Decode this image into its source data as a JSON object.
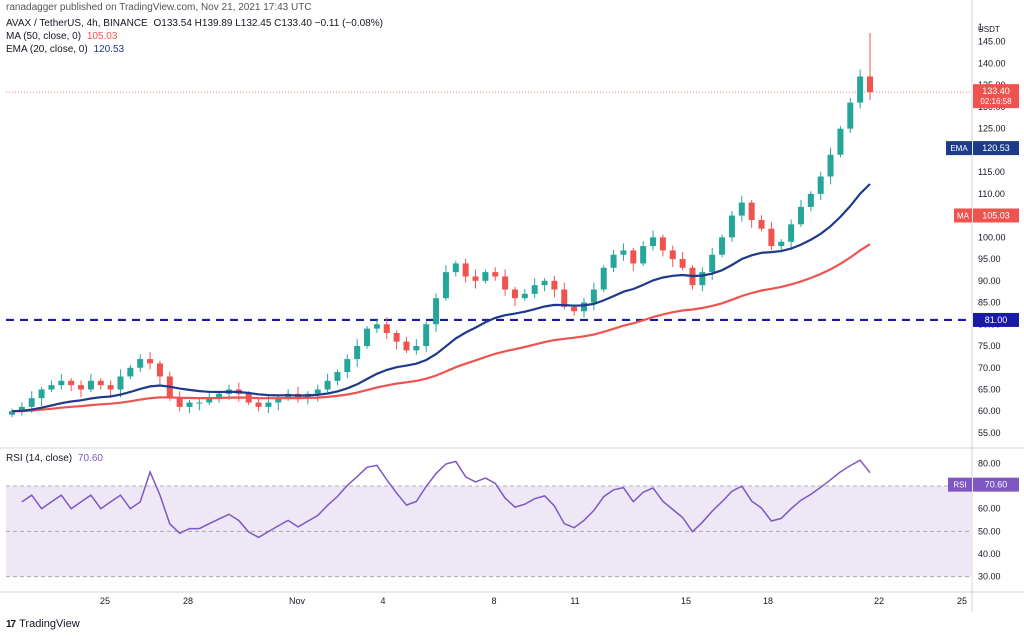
{
  "header": {
    "publisher": "ranadagger published on TradingView.com, Nov 21, 2021 17:43 UTC"
  },
  "legend": {
    "symbol": "AVAX / TetherUS, 4h, BINANCE",
    "ohlc": "O133.54 H139.89 L132.45 C133.40 −0.11 (−0.08%)",
    "ma_label": "MA (50, close, 0)",
    "ma_value": "105.03",
    "ema_label": "EMA (20, close, 0)",
    "ema_value": "120.53"
  },
  "rsi_legend": {
    "label": "RSI (14, close)",
    "value": "70.60"
  },
  "footer": {
    "logo": "17",
    "brand": "TradingView"
  },
  "colors": {
    "up": "#26a69a",
    "down": "#ef5350",
    "ma": "#ef5350",
    "ema": "#1e3a8a",
    "support": "#1a1aa6",
    "rsi": "#7e57c2",
    "rsi_band": "#ede7f6"
  },
  "chart_data": {
    "type": "candlestick",
    "currency": "USDT",
    "price_axis": {
      "ticks": [
        55,
        60,
        65,
        70,
        75,
        80,
        85,
        90,
        95,
        100,
        105,
        110,
        115,
        120,
        125,
        130,
        135,
        140,
        145
      ],
      "top_tick": "1"
    },
    "rsi_axis": {
      "ticks": [
        30,
        40,
        50,
        60,
        70,
        80
      ]
    },
    "x_axis": {
      "ticks": [
        "25",
        "28",
        "Nov",
        "4",
        "8",
        "11",
        "15",
        "18",
        "22",
        "25"
      ]
    },
    "price_tags": {
      "last": "133.40",
      "countdown": "02:16:58",
      "ema": "EMA",
      "ema_value": "120.53",
      "ma": "MA",
      "ma_value": "105.03",
      "support": "81.00"
    },
    "support_level": 81.0,
    "last_price": 133.4,
    "closes": [
      60,
      61,
      63,
      65,
      66,
      67,
      66,
      65,
      67,
      66,
      65,
      68,
      70,
      72,
      71,
      68,
      63,
      61,
      62,
      62,
      63,
      64,
      65,
      64,
      62,
      61,
      62,
      63,
      64,
      63,
      64,
      65,
      67,
      69,
      72,
      75,
      79,
      80,
      78,
      76,
      74,
      75,
      80,
      86,
      92,
      94,
      91,
      90,
      92,
      91,
      88,
      86,
      87,
      89,
      90,
      88,
      84,
      83,
      85,
      88,
      93,
      96,
      97,
      94,
      98,
      100,
      97,
      95,
      93,
      89,
      92,
      96,
      100,
      105,
      108,
      104,
      102,
      98,
      99,
      103,
      107,
      110,
      114,
      119,
      125,
      131,
      137,
      133.4
    ],
    "ranges": {
      "price_min": 52,
      "price_max": 150,
      "rsi_min": 25,
      "rsi_max": 85
    }
  }
}
